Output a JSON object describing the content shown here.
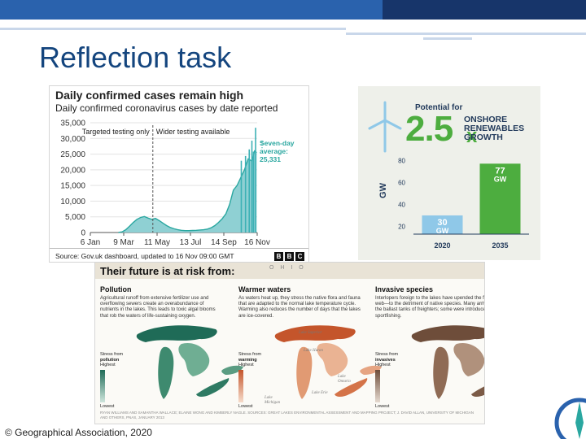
{
  "slide": {
    "title": "Reflection task",
    "copyright": "© Geographical Association, 2020"
  },
  "colors": {
    "accent": "#2a62ad",
    "title": "#14457e",
    "bars": "#2aa7a0",
    "green": "#4dad3f",
    "light_blue": "#8fc8e8"
  },
  "covid_chart": {
    "title": "Daily confirmed cases remain high",
    "subtitle": "Daily confirmed coronavirus cases by date reported",
    "annotation_left": "Targeted testing only",
    "annotation_right": "Wider testing available",
    "average_label_1": "Seven-day",
    "average_label_2": "average:",
    "average_label_3": "25,331",
    "source": "Source: Gov.uk dashboard, updated to 16 Nov 09:00 GMT",
    "logo_letters": [
      "B",
      "B",
      "C"
    ]
  },
  "energy": {
    "potential_label": "Potential for",
    "multiplier": "2.5",
    "multiplier_x": "x",
    "headline_1": "ONSHORE",
    "headline_2": "RENEWABLES",
    "headline_3": "GROWTH",
    "icon": "wind-turbine-icon"
  },
  "great_lakes": {
    "title": "Their future is at risk from:",
    "map_word": "O H I O",
    "columns": [
      {
        "heading": "Pollution",
        "text": "Agricultural runoff from extensive fertilizer use and overflowing sewers create an overabundance of nutrients in the lakes. This leads to toxic algal blooms that rob the waters of life-sustaining oxygen.",
        "legend_top_1": "Stress from",
        "legend_top_2": "pollution",
        "legend_high": "Highest",
        "legend_low": "Lowest"
      },
      {
        "heading": "Warmer waters",
        "text": "As waters heat up, they stress the native flora and fauna that are adapted to the normal lake temperature cycle. Warming also reduces the number of days that the lakes are ice-covered.",
        "legend_top_1": "Stress from",
        "legend_top_2": "warming",
        "legend_high": "Highest",
        "legend_low": "Lowest"
      },
      {
        "heading": "Invasive species",
        "text": "Interlopers foreign to the lakes have upended the food web—to the detriment of native species. Many arrived in the ballast tanks of freighters; some were introduced for sportfishing.",
        "legend_top_1": "Stress from",
        "legend_top_2": "invasives",
        "legend_high": "Highest",
        "legend_low": "Lowest"
      }
    ],
    "lake_labels": [
      "Lake Superior",
      "Lake Huron",
      "Lake Michigan",
      "Lake Ontario",
      "Lake Erie"
    ],
    "footnote": "RYAN WILLIAMS AND SAMANTHA WALLACE; ELAINE WONG AND KIMBERLY NAGLE. SOURCES: GREAT LAKES ENVIRONMENTAL ASSESSMENT AND MAPPING PROJECT; J. DAVID ALLAN, UNIVERSITY OF MICHIGAN AND OTHERS, PNAS, JANUARY 2013"
  },
  "chart_data": [
    {
      "type": "bar",
      "title": "Daily confirmed cases remain high",
      "subtitle": "Daily confirmed coronavirus cases by date reported",
      "xlabel": "",
      "ylabel": "",
      "x_ticks": [
        "6 Jan",
        "9 Mar",
        "11 May",
        "13 Jul",
        "14 Sep",
        "16 Nov"
      ],
      "y_ticks": [
        "0",
        "5,000",
        "10,000",
        "15,000",
        "20,000",
        "25,000",
        "30,000",
        "35,000"
      ],
      "ylim": [
        0,
        35000
      ],
      "days_range": [
        0,
        315
      ],
      "testing_change_day": 118,
      "envelope_day_value": [
        [
          53,
          0
        ],
        [
          60,
          200
        ],
        [
          67,
          900
        ],
        [
          74,
          2000
        ],
        [
          81,
          3200
        ],
        [
          88,
          4200
        ],
        [
          95,
          4800
        ],
        [
          102,
          5100
        ],
        [
          109,
          4600
        ],
        [
          116,
          4200
        ],
        [
          123,
          4500
        ],
        [
          130,
          3800
        ],
        [
          137,
          3000
        ],
        [
          144,
          2200
        ],
        [
          151,
          1600
        ],
        [
          158,
          1200
        ],
        [
          165,
          900
        ],
        [
          172,
          700
        ],
        [
          179,
          600
        ],
        [
          186,
          600
        ],
        [
          193,
          650
        ],
        [
          200,
          700
        ],
        [
          207,
          800
        ],
        [
          214,
          900
        ],
        [
          221,
          1100
        ],
        [
          228,
          1500
        ],
        [
          235,
          2200
        ],
        [
          242,
          3200
        ],
        [
          249,
          4400
        ],
        [
          256,
          6000
        ],
        [
          263,
          9000
        ],
        [
          270,
          13500
        ],
        [
          277,
          15000
        ],
        [
          284,
          17500
        ],
        [
          291,
          20000
        ],
        [
          298,
          23500
        ],
        [
          305,
          22800
        ],
        [
          310,
          26000
        ],
        [
          314,
          25500
        ]
      ],
      "spikes_day_value": [
        [
          285,
          22900
        ],
        [
          293,
          24400
        ],
        [
          300,
          26500
        ],
        [
          305,
          29300
        ],
        [
          308,
          25800
        ],
        [
          312,
          33400
        ]
      ],
      "seven_day_average": 25331,
      "grid": true
    },
    {
      "type": "bar",
      "categories": [
        "2020",
        "2035"
      ],
      "values": [
        30,
        77
      ],
      "data_labels": [
        "30 GW",
        "77 GW"
      ],
      "ylabel": "GW",
      "y_ticks": [
        "20",
        "40",
        "60",
        "80"
      ],
      "ylim": [
        13,
        92
      ],
      "colors": [
        "#8fc8e8",
        "#4dad3f"
      ]
    }
  ]
}
